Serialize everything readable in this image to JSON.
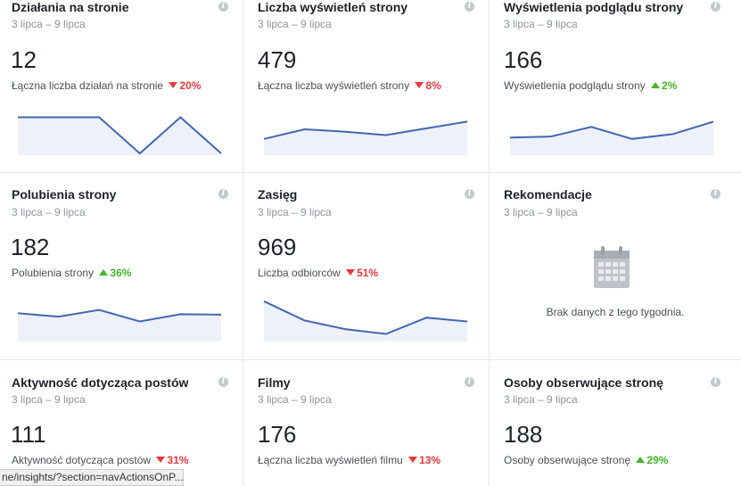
{
  "cards": [
    {
      "title": "Działania na stronie",
      "date": "3 lipca – 9 lipca",
      "value": "12",
      "sub": "Łączna liczba działań na stronie",
      "delta": "20%",
      "dir": "down",
      "spark": [
        0.75,
        0.75,
        0.75,
        0.0,
        0.75,
        0.0
      ]
    },
    {
      "title": "Liczba wyświetleń strony",
      "date": "3 lipca – 9 lipca",
      "value": "479",
      "sub": "Łączna liczba wyświetleń strony",
      "delta": "8%",
      "dir": "down",
      "spark": [
        0.3,
        0.5,
        0.45,
        0.38,
        0.52,
        0.66
      ]
    },
    {
      "title": "Wyświetlenia podglądu strony",
      "date": "3 lipca – 9 lipca",
      "value": "166",
      "sub": "Wyświetlenia podglądu strony",
      "delta": "2%",
      "dir": "up",
      "spark": [
        0.33,
        0.35,
        0.55,
        0.3,
        0.4,
        0.66
      ]
    },
    {
      "title": "Polubienia strony",
      "date": "3 lipca – 9 lipca",
      "value": "182",
      "sub": "Polubienia strony",
      "delta": "36%",
      "dir": "up",
      "spark": [
        0.55,
        0.48,
        0.62,
        0.38,
        0.53,
        0.52
      ]
    },
    {
      "title": "Zasięg",
      "date": "3 lipca – 9 lipca",
      "value": "969",
      "sub": "Liczba odbiorców",
      "delta": "51%",
      "dir": "down",
      "spark": [
        0.8,
        0.4,
        0.22,
        0.12,
        0.46,
        0.38
      ]
    },
    {
      "title": "Rekomendacje",
      "date": "3 lipca – 9 lipca",
      "empty": "Brak danych z tego tygodnia."
    },
    {
      "title": "Aktywność dotycząca postów",
      "date": "3 lipca – 9 lipca",
      "value": "111",
      "sub": "Aktywność dotycząca postów",
      "delta": "31%",
      "dir": "down"
    },
    {
      "title": "Filmy",
      "date": "3 lipca – 9 lipca",
      "value": "176",
      "sub": "Łączna liczba wyświetleń filmu",
      "delta": "13%",
      "dir": "down"
    },
    {
      "title": "Osoby obserwujące stronę",
      "date": "3 lipca – 9 lipca",
      "value": "188",
      "sub": "Osoby obserwujące stronę",
      "delta": "29%",
      "dir": "up"
    }
  ],
  "status_url": "ne/insights/?section=navActionsOnP...",
  "colors": {
    "line": "#4267b2",
    "fill": "#eef1fa",
    "down": "#e9383c",
    "up": "#42b72a"
  }
}
